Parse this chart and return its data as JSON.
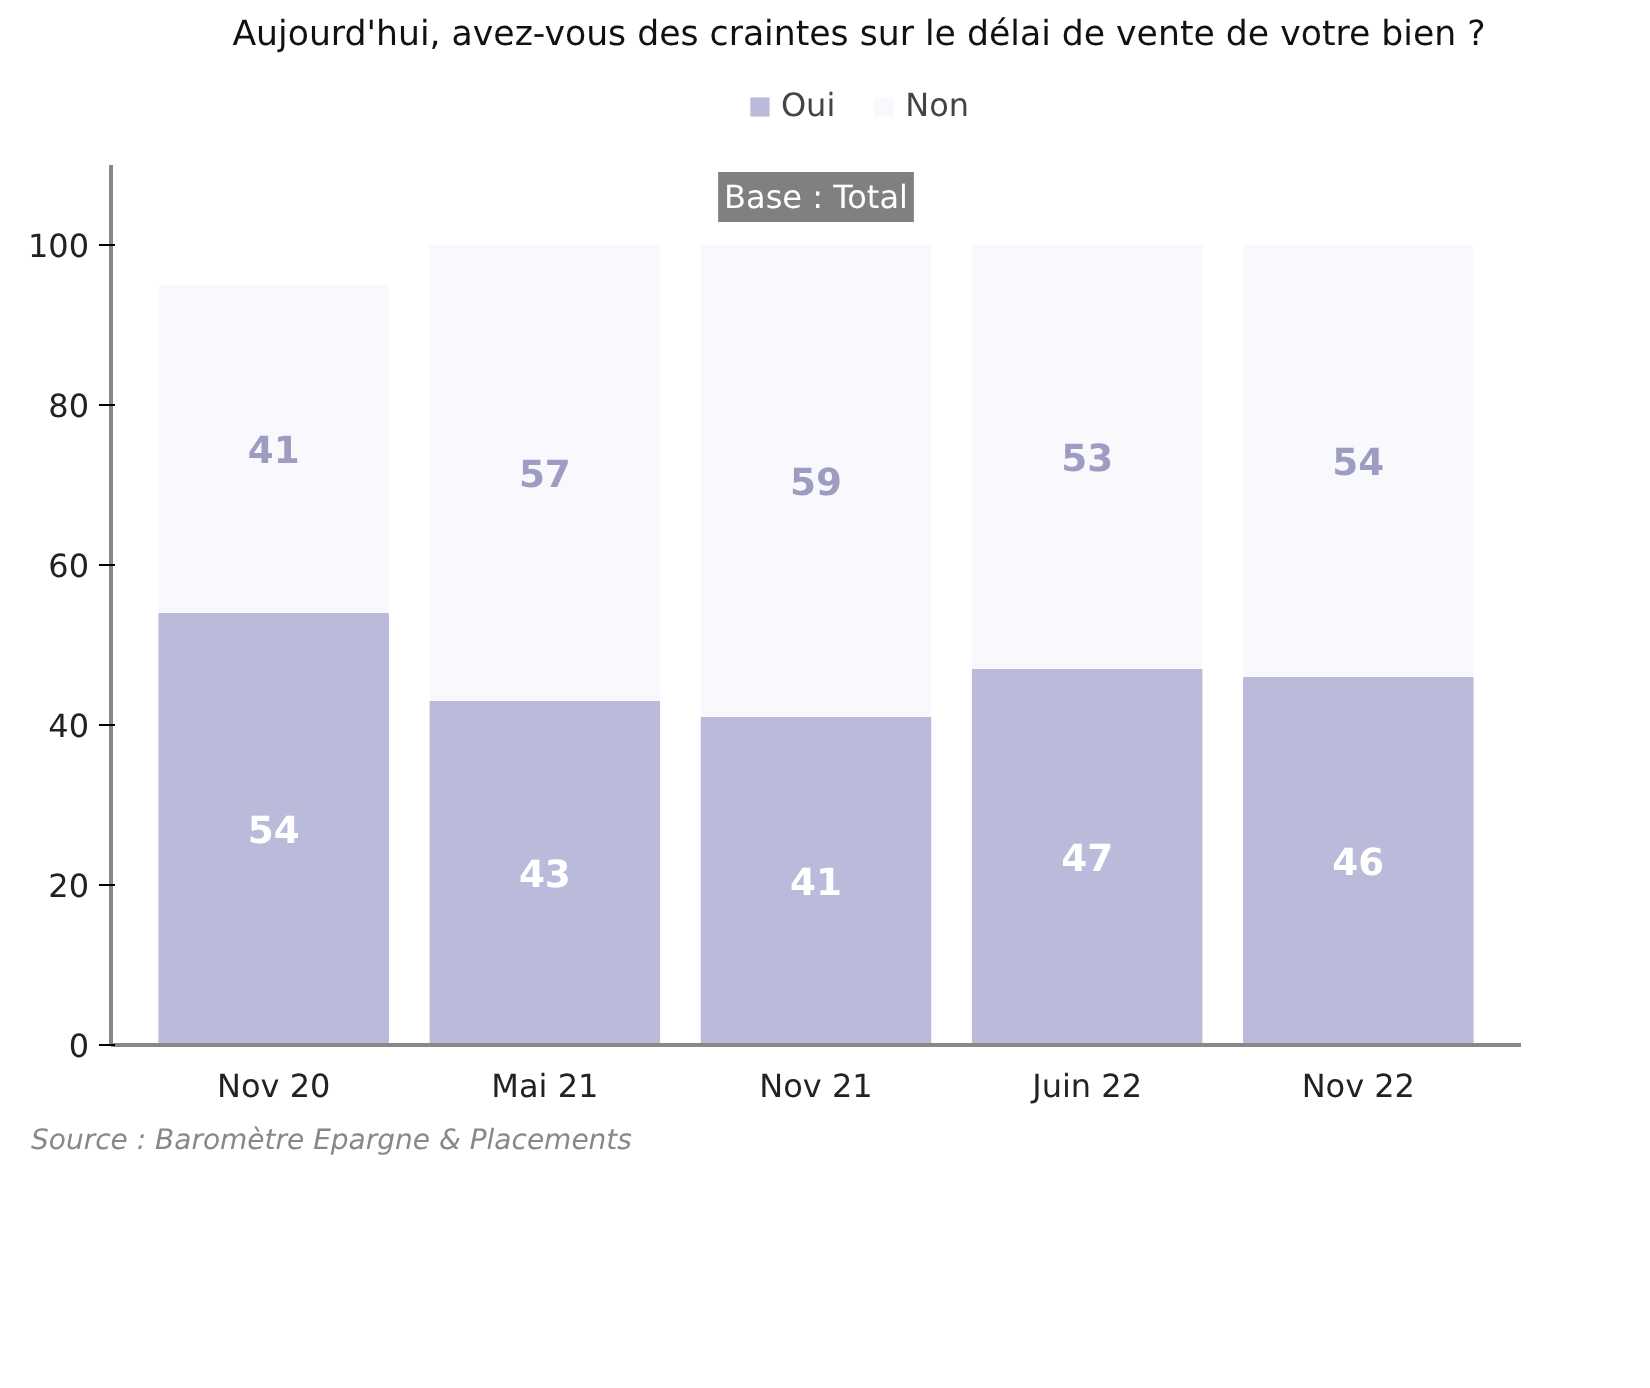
{
  "chart_data": {
    "type": "bar",
    "title": "Aujourd'hui, avez-vous des craintes sur le délai de vente de votre bien ?",
    "categories": [
      "Nov 20",
      "Mai 21",
      "Nov 21",
      "Juin 22",
      "Nov 22"
    ],
    "series": [
      {
        "name": "Oui",
        "color": "#babadb",
        "values": [
          54,
          43,
          41,
          47,
          46
        ]
      },
      {
        "name": "Non",
        "color": "#f8f8fd",
        "values": [
          41,
          57,
          59,
          53,
          54
        ]
      }
    ],
    "stacked": true,
    "data_labels": true,
    "ylim": [
      0,
      110
    ],
    "yticks": [
      0,
      20,
      40,
      60,
      80,
      100
    ],
    "grid": false,
    "legend": "top",
    "annotations": [
      "Base : Total",
      "Source : Baromètre Epargne & Placements"
    ]
  }
}
